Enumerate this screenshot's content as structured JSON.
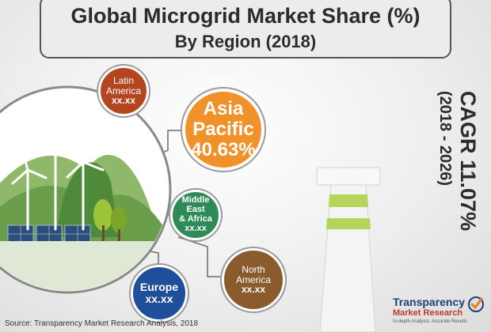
{
  "chart_data": {
    "type": "bubble",
    "title": "Global Microgrid Market Share (%)",
    "subtitle": "By Region (2018)",
    "regions": [
      {
        "key": "latam",
        "label_lines": [
          "Latin",
          "America"
        ],
        "value": "xx.xx",
        "color": "#b3461e"
      },
      {
        "key": "apac",
        "label_lines": [
          "Asia",
          "Pacific"
        ],
        "value": "40.63%",
        "color": "#f0912a"
      },
      {
        "key": "mea",
        "label_lines": [
          "Middle East",
          "& Africa"
        ],
        "value": "xx.xx",
        "color": "#2e8b57"
      },
      {
        "key": "na",
        "label_lines": [
          "North",
          "America"
        ],
        "value": "xx.xx",
        "color": "#8a5b2c"
      },
      {
        "key": "eu",
        "label_lines": [
          "Europe"
        ],
        "value": "xx.xx",
        "color": "#1f4f9a"
      }
    ],
    "cagr": {
      "value": "CAGR 11.07%",
      "period": "(2018 - 2026)"
    }
  },
  "source": "Source: Transparency Market Research Analysis, 2018",
  "logo": {
    "name_line1": "Transparency",
    "name_line2": "Market Research",
    "tagline": "In-depth Analysis. Accurate Results"
  },
  "icons": [
    "microgrid-landscape-illustration",
    "smokestack-illustration",
    "logo-checkmark-icon"
  ]
}
